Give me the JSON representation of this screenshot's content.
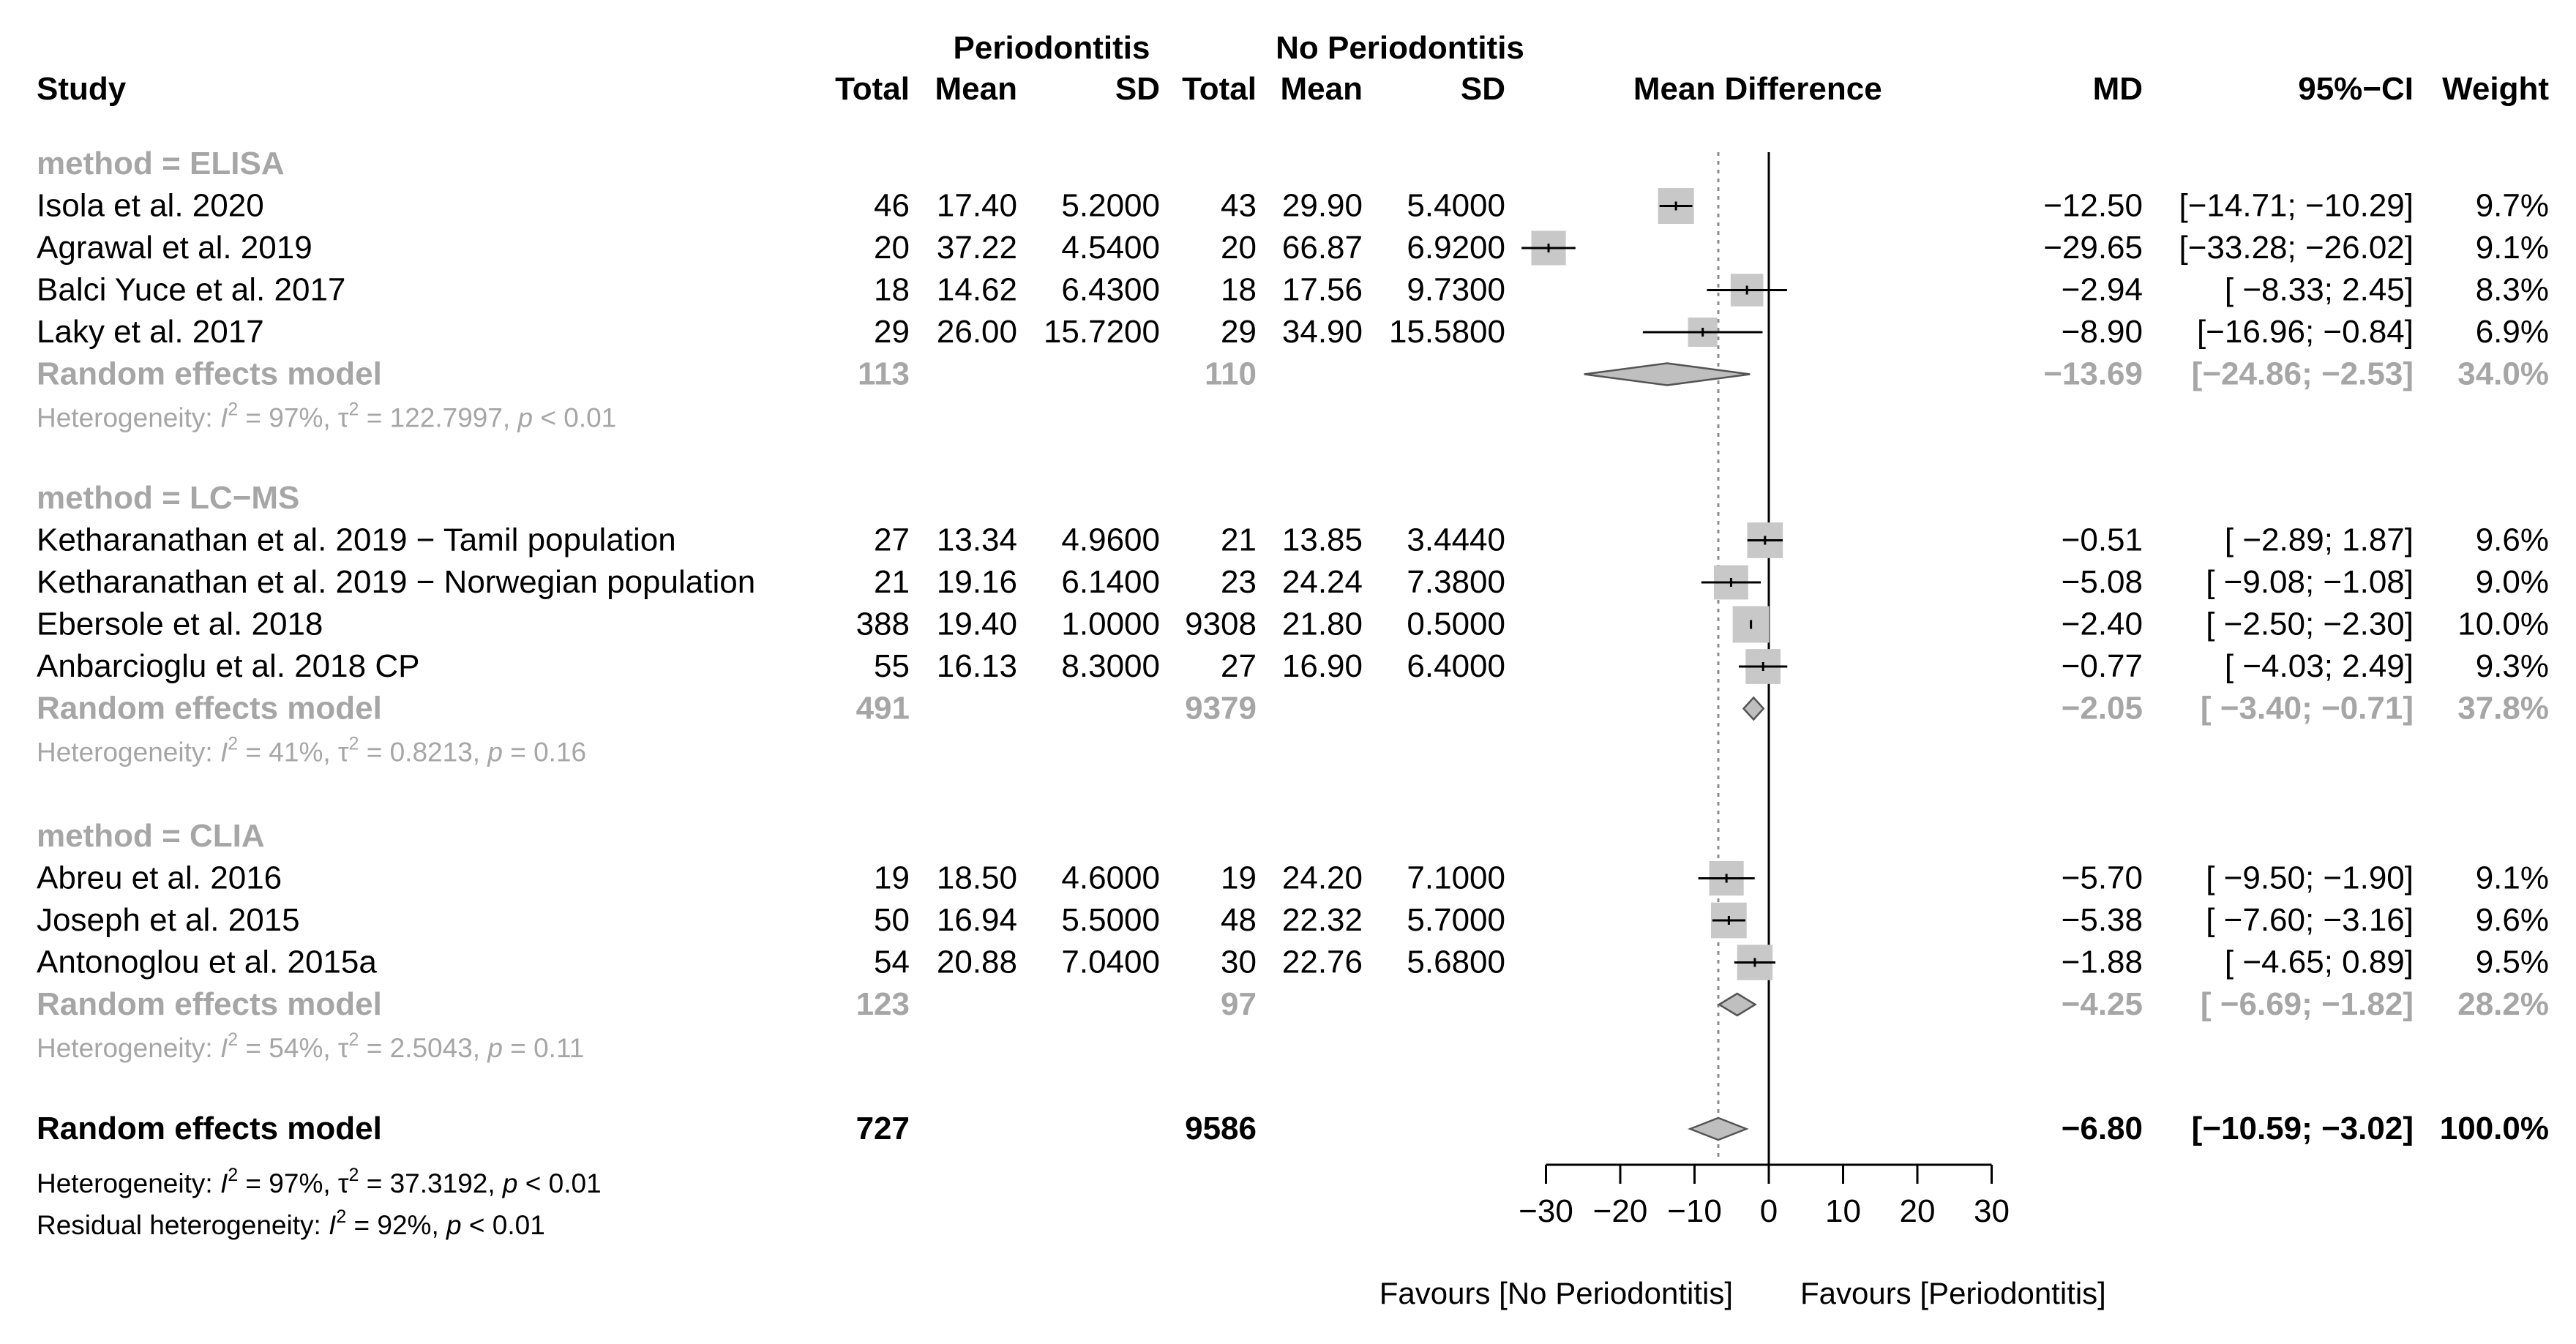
{
  "header": {
    "group1": "Periodontitis",
    "group2": "No Periodontitis",
    "study": "Study",
    "total": "Total",
    "mean": "Mean",
    "sd": "SD",
    "plot_title": "Mean Difference",
    "md": "MD",
    "ci": "95%−CI",
    "weight": "Weight"
  },
  "subgroup_model_label": "Random effects model",
  "subgroups": [
    {
      "label": "method = ELISA",
      "studies": [
        {
          "name": "Isola et al. 2020",
          "t1": "46",
          "m1": "17.40",
          "sd1": "5.2000",
          "t2": "43",
          "m2": "29.90",
          "sd2": "5.4000",
          "md_text": "−12.50",
          "ci_text": "[−14.71; −10.29]",
          "w_text": "9.7%",
          "md": -12.5,
          "lo": -14.71,
          "hi": -10.29,
          "w": 9.7
        },
        {
          "name": "Agrawal et al. 2019",
          "t1": "20",
          "m1": "37.22",
          "sd1": "4.5400",
          "t2": "20",
          "m2": "66.87",
          "sd2": "6.9200",
          "md_text": "−29.65",
          "ci_text": "[−33.28; −26.02]",
          "w_text": "9.1%",
          "md": -29.65,
          "lo": -33.28,
          "hi": -26.02,
          "w": 9.1
        },
        {
          "name": "Balci Yuce et al. 2017",
          "t1": "18",
          "m1": "14.62",
          "sd1": "6.4300",
          "t2": "18",
          "m2": "17.56",
          "sd2": "9.7300",
          "md_text": "−2.94",
          "ci_text": "[ −8.33;   2.45]",
          "w_text": "8.3%",
          "md": -2.94,
          "lo": -8.33,
          "hi": 2.45,
          "w": 8.3
        },
        {
          "name": "Laky et al. 2017",
          "t1": "29",
          "m1": "26.00",
          "sd1": "15.7200",
          "t2": "29",
          "m2": "34.90",
          "sd2": "15.5800",
          "md_text": "−8.90",
          "ci_text": "[−16.96; −0.84]",
          "w_text": "6.9%",
          "md": -8.9,
          "lo": -16.96,
          "hi": -0.84,
          "w": 6.9
        }
      ],
      "model": {
        "t1": "113",
        "t2": "110",
        "md_text": "−13.69",
        "ci_text": "[−24.86; −2.53]",
        "w_text": "34.0%",
        "md": -13.69,
        "lo": -24.86,
        "hi": -2.53
      },
      "heterogeneity": {
        "prefix": "Heterogeneity: ",
        "i2_sym": "I",
        "i2_rest": " = 97%, ",
        "tau_sym": "τ",
        "tau_rest": " = 122.7997, ",
        "p_sym": "p",
        "p_rest": " < 0.01",
        "sup": "2"
      }
    },
    {
      "label": "method = LC−MS",
      "studies": [
        {
          "name": "Ketharanathan et al. 2019 − Tamil population",
          "t1": "27",
          "m1": "13.34",
          "sd1": "4.9600",
          "t2": "21",
          "m2": "13.85",
          "sd2": "3.4440",
          "md_text": "−0.51",
          "ci_text": "[ −2.89;   1.87]",
          "w_text": "9.6%",
          "md": -0.51,
          "lo": -2.89,
          "hi": 1.87,
          "w": 9.6
        },
        {
          "name": "Ketharanathan et al. 2019 − Norwegian population",
          "t1": "21",
          "m1": "19.16",
          "sd1": "6.1400",
          "t2": "23",
          "m2": "24.24",
          "sd2": "7.3800",
          "md_text": "−5.08",
          "ci_text": "[ −9.08; −1.08]",
          "w_text": "9.0%",
          "md": -5.08,
          "lo": -9.08,
          "hi": -1.08,
          "w": 9.0
        },
        {
          "name": "Ebersole et al. 2018",
          "t1": "388",
          "m1": "19.40",
          "sd1": "1.0000",
          "t2": "9308",
          "m2": "21.80",
          "sd2": "0.5000",
          "md_text": "−2.40",
          "ci_text": "[ −2.50; −2.30]",
          "w_text": "10.0%",
          "md": -2.4,
          "lo": -2.5,
          "hi": -2.3,
          "w": 10.0
        },
        {
          "name": "Anbarcioglu et al. 2018 CP",
          "t1": "55",
          "m1": "16.13",
          "sd1": "8.3000",
          "t2": "27",
          "m2": "16.90",
          "sd2": "6.4000",
          "md_text": "−0.77",
          "ci_text": "[ −4.03;   2.49]",
          "w_text": "9.3%",
          "md": -0.77,
          "lo": -4.03,
          "hi": 2.49,
          "w": 9.3
        }
      ],
      "model": {
        "t1": "491",
        "t2": "9379",
        "md_text": "−2.05",
        "ci_text": "[ −3.40; −0.71]",
        "w_text": "37.8%",
        "md": -2.05,
        "lo": -3.4,
        "hi": -0.71
      },
      "heterogeneity": {
        "prefix": "Heterogeneity: ",
        "i2_sym": "I",
        "i2_rest": " = 41%, ",
        "tau_sym": "τ",
        "tau_rest": " = 0.8213, ",
        "p_sym": "p",
        "p_rest": " = 0.16",
        "sup": "2"
      }
    },
    {
      "label": "method = CLIA",
      "studies": [
        {
          "name": "Abreu et al. 2016",
          "t1": "19",
          "m1": "18.50",
          "sd1": "4.6000",
          "t2": "19",
          "m2": "24.20",
          "sd2": "7.1000",
          "md_text": "−5.70",
          "ci_text": "[ −9.50; −1.90]",
          "w_text": "9.1%",
          "md": -5.7,
          "lo": -9.5,
          "hi": -1.9,
          "w": 9.1
        },
        {
          "name": "Joseph et al. 2015",
          "t1": "50",
          "m1": "16.94",
          "sd1": "5.5000",
          "t2": "48",
          "m2": "22.32",
          "sd2": "5.7000",
          "md_text": "−5.38",
          "ci_text": "[ −7.60; −3.16]",
          "w_text": "9.6%",
          "md": -5.38,
          "lo": -7.6,
          "hi": -3.16,
          "w": 9.6
        },
        {
          "name": "Antonoglou et al. 2015a",
          "t1": "54",
          "m1": "20.88",
          "sd1": "7.0400",
          "t2": "30",
          "m2": "22.76",
          "sd2": "5.6800",
          "md_text": "−1.88",
          "ci_text": "[ −4.65;   0.89]",
          "w_text": "9.5%",
          "md": -1.88,
          "lo": -4.65,
          "hi": 0.89,
          "w": 9.5
        }
      ],
      "model": {
        "t1": "123",
        "t2": "97",
        "md_text": "−4.25",
        "ci_text": "[ −6.69; −1.82]",
        "w_text": "28.2%",
        "md": -4.25,
        "lo": -6.69,
        "hi": -1.82
      },
      "heterogeneity": {
        "prefix": "Heterogeneity: ",
        "i2_sym": "I",
        "i2_rest": " = 54%, ",
        "tau_sym": "τ",
        "tau_rest": " = 2.5043, ",
        "p_sym": "p",
        "p_rest": " = 0.11",
        "sup": "2"
      }
    }
  ],
  "overall": {
    "label": "Random effects model",
    "t1": "727",
    "t2": "9586",
    "md_text": "−6.80",
    "ci_text": "[−10.59; −3.02]",
    "w_text": "100.0%",
    "md": -6.8,
    "lo": -10.59,
    "hi": -3.02,
    "heterogeneity": {
      "prefix": "Heterogeneity: ",
      "i2_sym": "I",
      "i2_rest": " = 97%, ",
      "tau_sym": "τ",
      "tau_rest": " = 37.3192, ",
      "p_sym": "p",
      "p_rest": " < 0.01",
      "sup": "2"
    },
    "residual": {
      "prefix": "Residual heterogeneity: ",
      "i2_sym": "I",
      "i2_rest": " = 92%, ",
      "p_sym": "p",
      "p_rest": " < 0.01",
      "sup": "2"
    }
  },
  "favours_left": "Favours [No Periodontitis]",
  "favours_right": "Favours [Periodontitis]",
  "colors": {
    "text": "#000000",
    "subgroup_text": "#a6a6a6",
    "box": "#c8c8c8",
    "diamond": "#bfbfbf",
    "line": "#000000",
    "ref_line": "#8c8c8c"
  },
  "chart_data": {
    "type": "forest",
    "title": "Mean Difference",
    "xlabel": "Mean Difference",
    "xlim": [
      -30,
      30
    ],
    "xticks": [
      -30,
      -20,
      -10,
      0,
      10,
      20,
      30
    ],
    "null_line": 0,
    "pooled_line": -6.8,
    "series": [
      {
        "name": "Isola et al. 2020",
        "group": "method = ELISA",
        "md": -12.5,
        "lo": -14.71,
        "hi": -10.29,
        "weight": 9.7
      },
      {
        "name": "Agrawal et al. 2019",
        "group": "method = ELISA",
        "md": -29.65,
        "lo": -33.28,
        "hi": -26.02,
        "weight": 9.1
      },
      {
        "name": "Balci Yuce et al. 2017",
        "group": "method = ELISA",
        "md": -2.94,
        "lo": -8.33,
        "hi": 2.45,
        "weight": 8.3
      },
      {
        "name": "Laky et al. 2017",
        "group": "method = ELISA",
        "md": -8.9,
        "lo": -16.96,
        "hi": -0.84,
        "weight": 6.9
      },
      {
        "name": "Ketharanathan et al. 2019 − Tamil population",
        "group": "method = LC−MS",
        "md": -0.51,
        "lo": -2.89,
        "hi": 1.87,
        "weight": 9.6
      },
      {
        "name": "Ketharanathan et al. 2019 − Norwegian population",
        "group": "method = LC−MS",
        "md": -5.08,
        "lo": -9.08,
        "hi": -1.08,
        "weight": 9.0
      },
      {
        "name": "Ebersole et al. 2018",
        "group": "method = LC−MS",
        "md": -2.4,
        "lo": -2.5,
        "hi": -2.3,
        "weight": 10.0
      },
      {
        "name": "Anbarcioglu et al. 2018 CP",
        "group": "method = LC−MS",
        "md": -0.77,
        "lo": -4.03,
        "hi": 2.49,
        "weight": 9.3
      },
      {
        "name": "Abreu et al. 2016",
        "group": "method = CLIA",
        "md": -5.7,
        "lo": -9.5,
        "hi": -1.9,
        "weight": 9.1
      },
      {
        "name": "Joseph et al. 2015",
        "group": "method = CLIA",
        "md": -5.38,
        "lo": -7.6,
        "hi": -3.16,
        "weight": 9.6
      },
      {
        "name": "Antonoglou et al. 2015a",
        "group": "method = CLIA",
        "md": -1.88,
        "lo": -4.65,
        "hi": 0.89,
        "weight": 9.5
      }
    ],
    "subgroup_models": [
      {
        "group": "method = ELISA",
        "md": -13.69,
        "lo": -24.86,
        "hi": -2.53,
        "weight": 34.0
      },
      {
        "group": "method = LC−MS",
        "md": -2.05,
        "lo": -3.4,
        "hi": -0.71,
        "weight": 37.8
      },
      {
        "group": "method = CLIA",
        "md": -4.25,
        "lo": -6.69,
        "hi": -1.82,
        "weight": 28.2
      }
    ],
    "overall_model": {
      "md": -6.8,
      "lo": -10.59,
      "hi": -3.02,
      "weight": 100.0
    }
  }
}
